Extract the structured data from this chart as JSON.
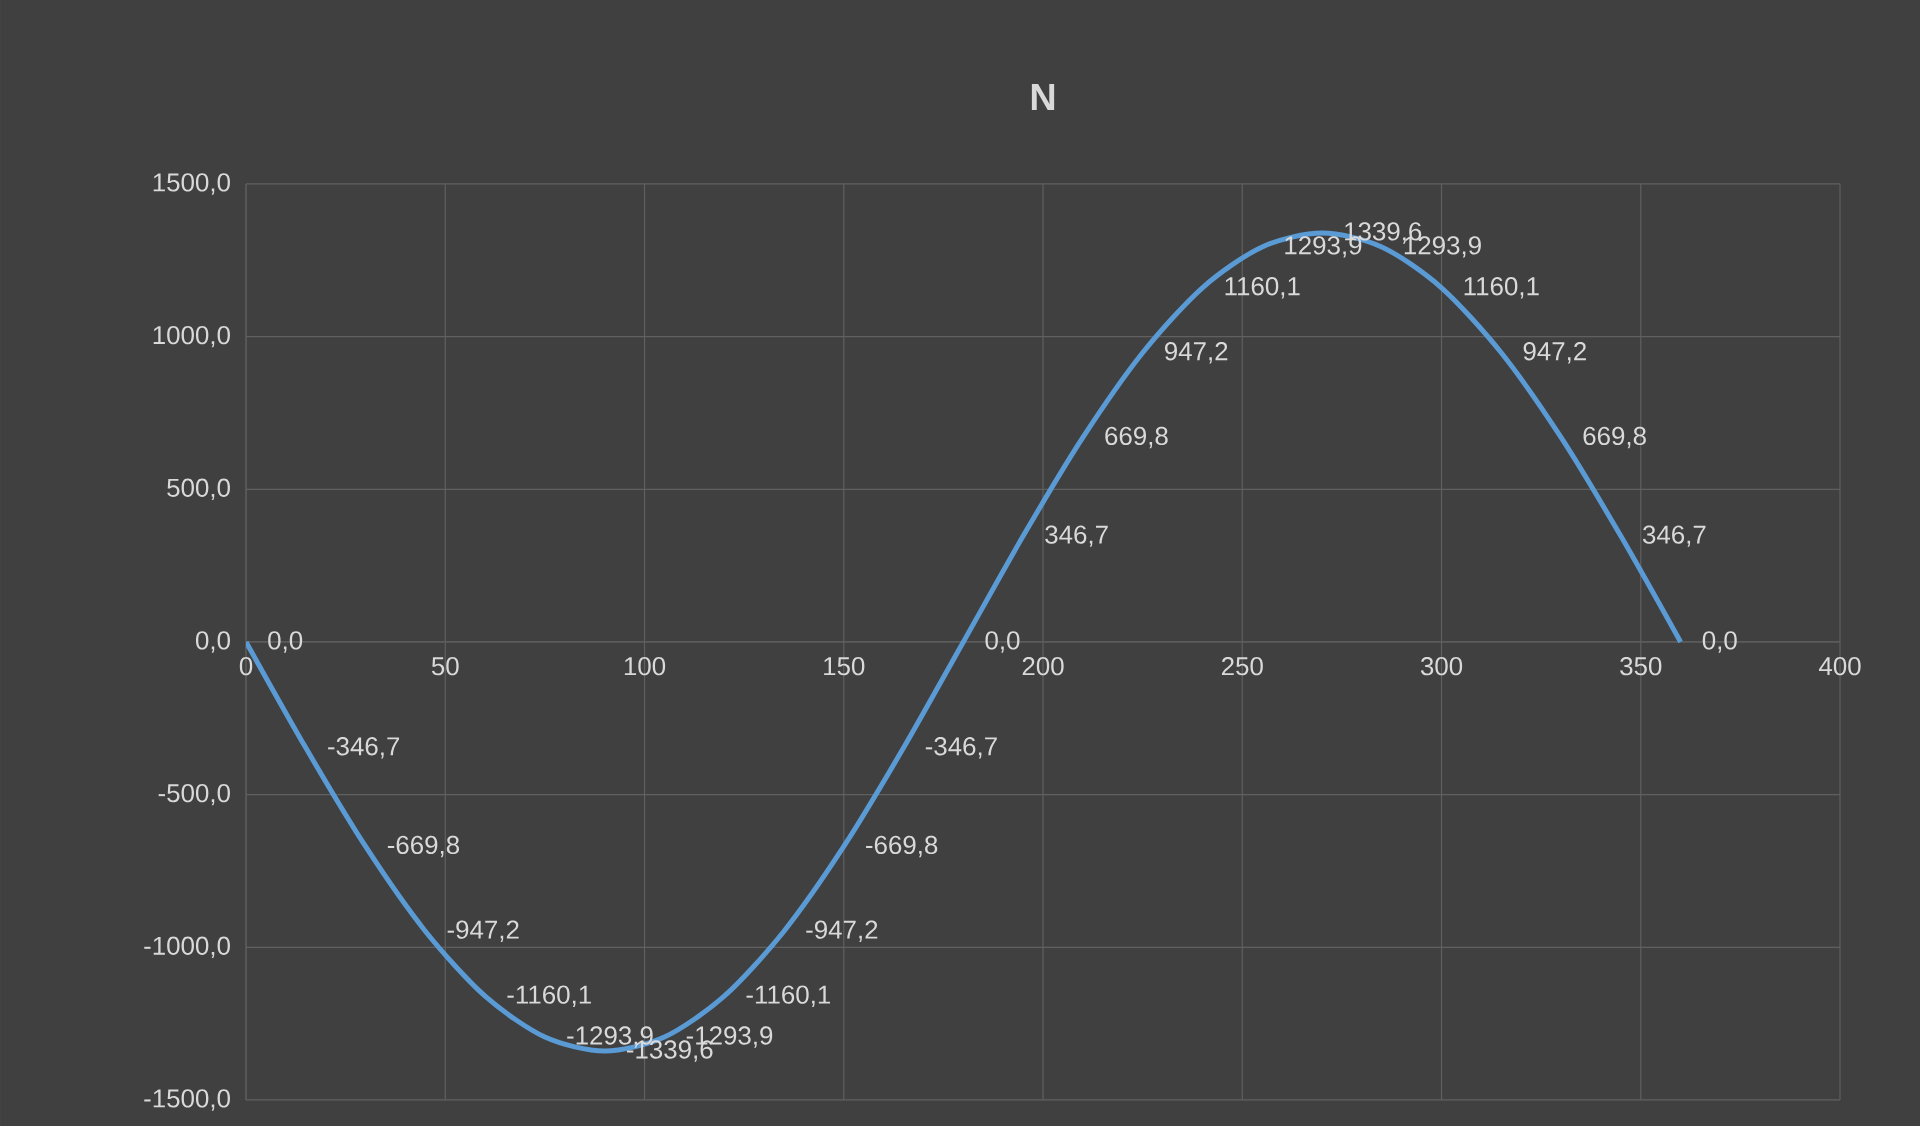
{
  "chart_data": {
    "type": "line",
    "title": "N",
    "x": [
      0,
      15,
      30,
      45,
      60,
      75,
      90,
      105,
      120,
      135,
      150,
      165,
      180,
      195,
      210,
      225,
      240,
      255,
      270,
      285,
      300,
      315,
      330,
      345,
      360
    ],
    "values": [
      0.0,
      -346.7,
      -669.8,
      -947.2,
      -1160.1,
      -1293.9,
      -1339.6,
      -1293.9,
      -1160.1,
      -947.2,
      -669.8,
      -346.7,
      0.0,
      346.7,
      669.8,
      947.2,
      1160.1,
      1293.9,
      1339.6,
      1293.9,
      1160.1,
      947.2,
      669.8,
      346.7,
      0.0
    ],
    "value_labels": [
      "0,0",
      "-346,7",
      "-669,8",
      "-947,2",
      "-1160,1",
      "-1293,9",
      "-1339,6",
      "-1293,9",
      "-1160,1",
      "-947,2",
      "-669,8",
      "-346,7",
      "0,0",
      "346,7",
      "669,8",
      "947,2",
      "1160,1",
      "1293,9",
      "1339,6",
      "1293,9",
      "1160,1",
      "947,2",
      "669,8",
      "346,7",
      "0,0"
    ],
    "color": "#5b9bd5",
    "xlim": [
      0,
      400
    ],
    "ylim": [
      -1500,
      1500
    ],
    "xticks": [
      0,
      50,
      100,
      150,
      200,
      250,
      300,
      350,
      400
    ],
    "yticks": [
      {
        "value": -1500,
        "label": "-1500,0"
      },
      {
        "value": -1000,
        "label": "-1000,0"
      },
      {
        "value": -500,
        "label": "-500,0"
      },
      {
        "value": 0,
        "label": "0,0"
      },
      {
        "value": 500,
        "label": "500,0"
      },
      {
        "value": 1000,
        "label": "1000,0"
      },
      {
        "value": 1500,
        "label": "1500,0"
      }
    ],
    "grid": true,
    "marker": "none",
    "line_style": "solid"
  }
}
